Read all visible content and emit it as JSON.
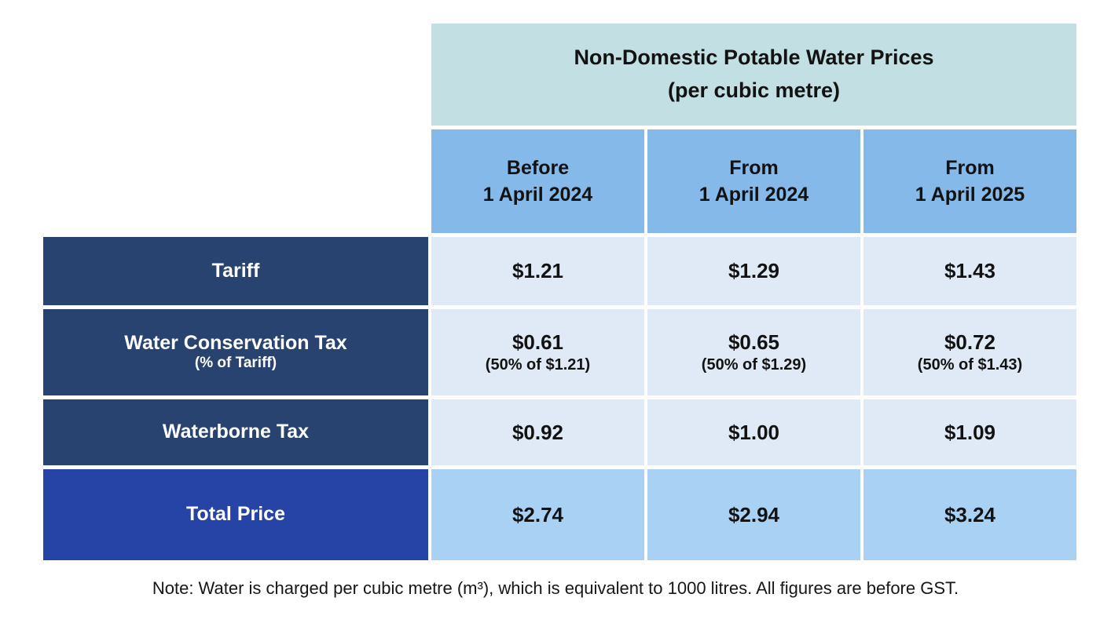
{
  "table": {
    "title": {
      "line1": "Non-Domestic Potable Water Prices",
      "line2": "(per cubic metre)"
    },
    "columns": [
      {
        "line1": "Before",
        "line2": "1 April 2024"
      },
      {
        "line1": "From",
        "line2": "1 April 2024"
      },
      {
        "line1": "From",
        "line2": "1 April 2025"
      }
    ],
    "rows": [
      {
        "label": "Tariff",
        "values": [
          "$1.21",
          "$1.29",
          "$1.43"
        ]
      },
      {
        "label": "Water Conservation Tax",
        "sublabel": "(% of Tariff)",
        "values": [
          "$0.61",
          "$0.65",
          "$0.72"
        ],
        "subvalues": [
          "(50% of $1.21)",
          "(50% of $1.29)",
          "(50% of $1.43)"
        ]
      },
      {
        "label": "Waterborne Tax",
        "values": [
          "$0.92",
          "$1.00",
          "$1.09"
        ]
      },
      {
        "label": "Total Price",
        "values": [
          "$2.74",
          "$2.94",
          "$3.24"
        ]
      }
    ]
  },
  "note": "Note: Water is charged per cubic metre (m³), which is equivalent to 1000 litres. All figures are before GST.",
  "colors": {
    "title_background": "#c2dfe3",
    "column_header_background": "#85b9ea",
    "row_label_background": "#294371",
    "total_label_background": "#2644a5",
    "data_cell_background": "#dfeaf6",
    "total_cell_background": "#a9d1f4",
    "page_background": "#ffffff",
    "text_dark": "#121212",
    "text_light": "#ffffff"
  }
}
